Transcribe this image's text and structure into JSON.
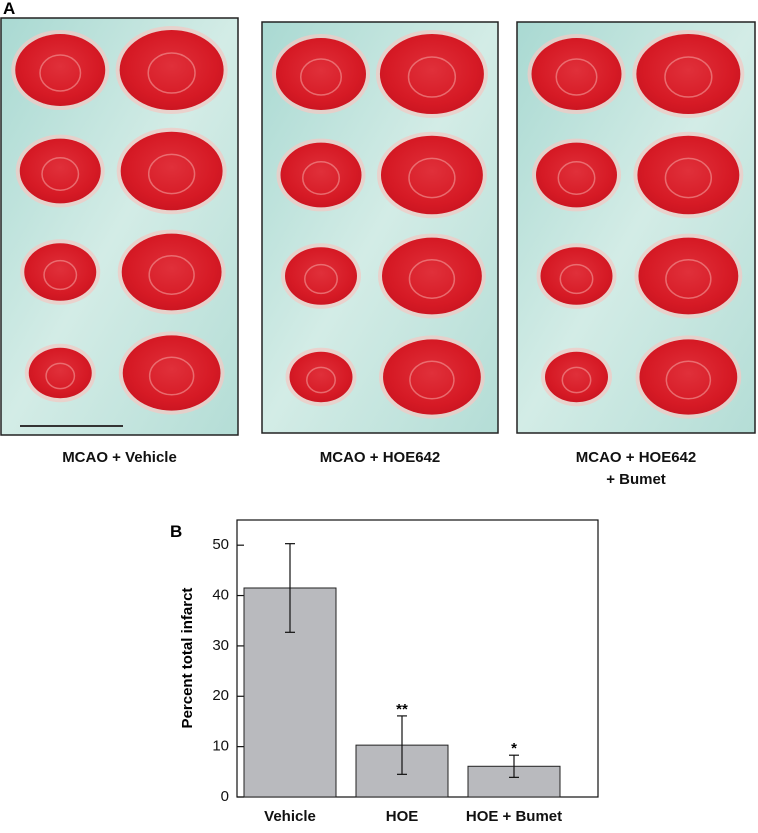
{
  "panel_a": {
    "label": "A",
    "captions": [
      [
        "MCAO + Vehicle"
      ],
      [
        "MCAO + HOE642"
      ],
      [
        "MCAO + HOE642",
        "+ Bumet"
      ]
    ]
  },
  "chart_data": {
    "type": "bar",
    "panel_label": "B",
    "y_label": "Percent total infarct",
    "categories": [
      "Vehicle",
      "HOE",
      "HOE + Bumet"
    ],
    "values": [
      41.5,
      10.3,
      6.1
    ],
    "errors": [
      8.8,
      5.8,
      2.2
    ],
    "significance": [
      null,
      "**",
      "*"
    ],
    "color": "#b9babe",
    "ylim": [
      0,
      55
    ],
    "yticks": [
      0,
      10,
      20,
      30,
      40,
      50
    ],
    "grid": false
  }
}
